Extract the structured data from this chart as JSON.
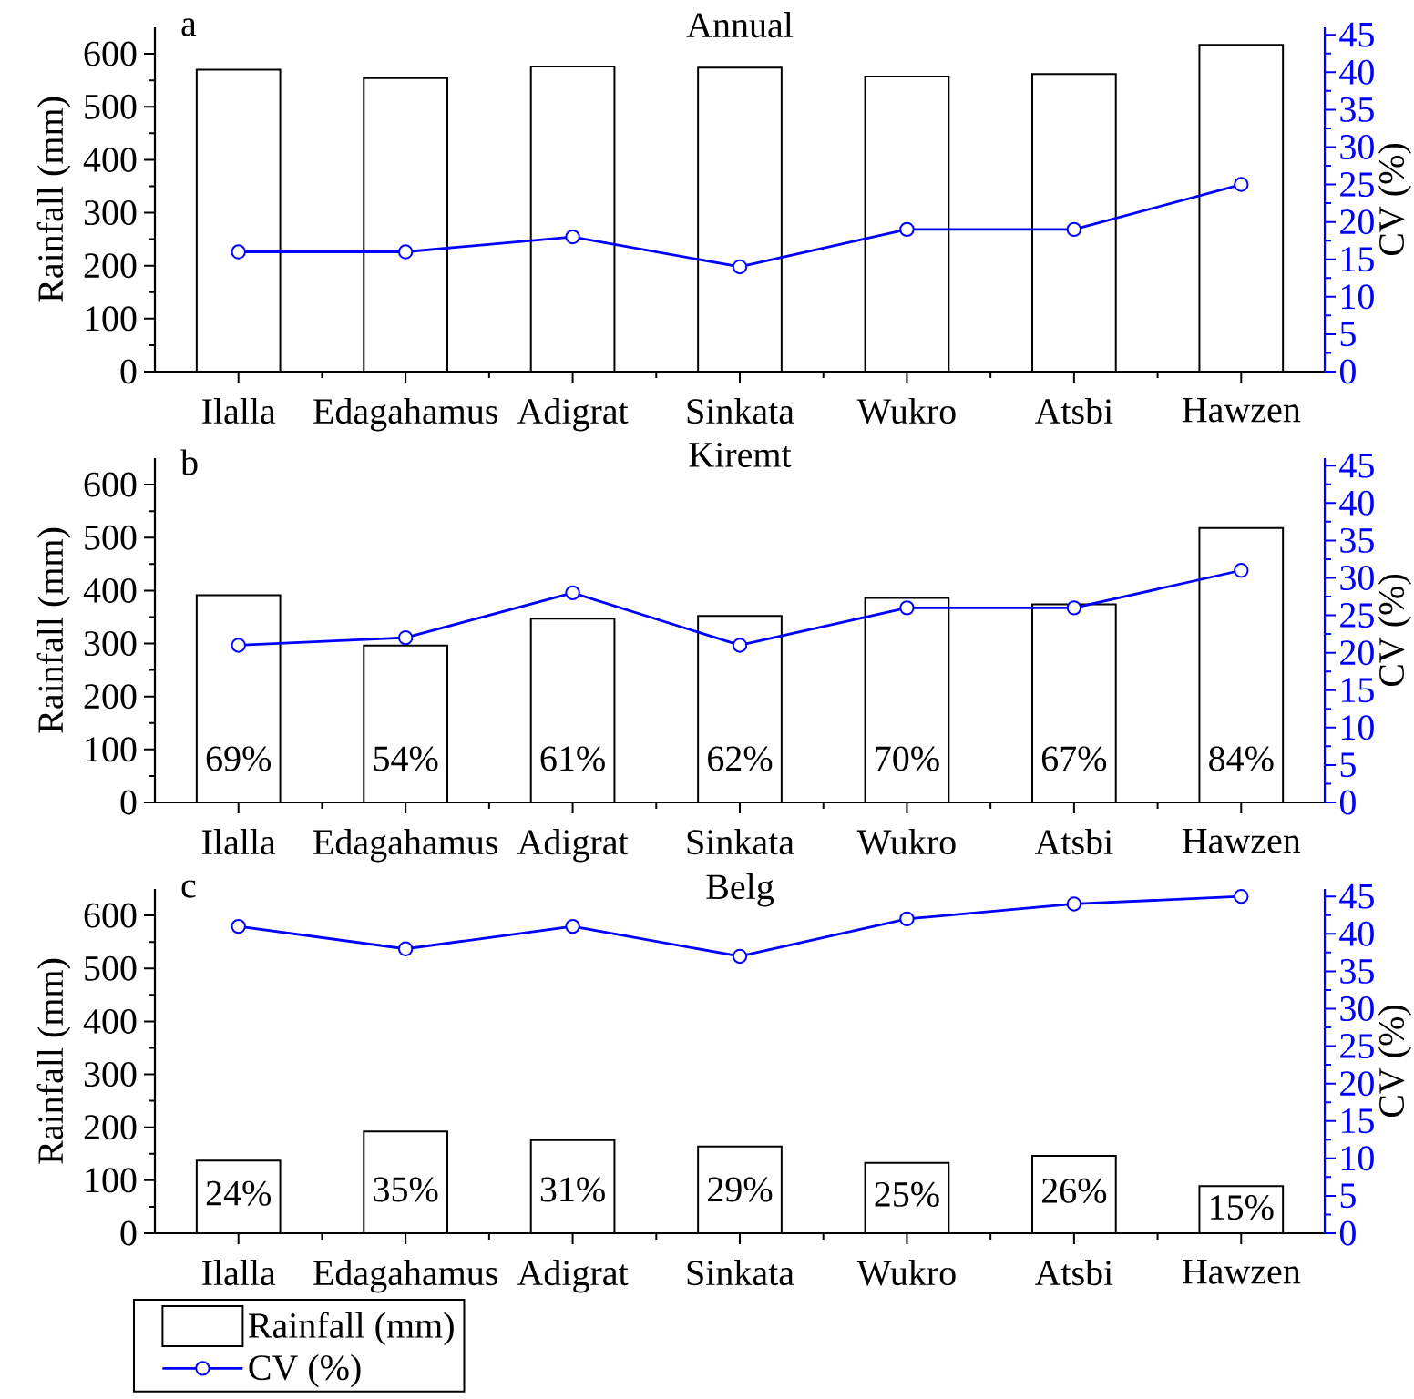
{
  "chart_data": [
    {
      "type": "bar",
      "title": "Annual",
      "annotations": [
        "a"
      ],
      "categories": [
        "Ilalla",
        "Edagahamus",
        "Adigrat",
        "Sinkata",
        "Wukro",
        "Atsbi",
        "Hawzen"
      ],
      "ylabel": "Rainfall (mm)",
      "y2label": "CV (%)",
      "ylim": [
        0,
        650
      ],
      "yticks": [
        0,
        {
          "value": 50,
          "label": null
        },
        100,
        {
          "value": 150,
          "label": null
        },
        200,
        {
          "value": 250,
          "label": null
        },
        300,
        {
          "value": 350,
          "label": null
        },
        400,
        {
          "value": 450,
          "label": null
        },
        500,
        {
          "value": 550,
          "label": null
        },
        600
      ],
      "y2lim": [
        0,
        46
      ],
      "y2ticks": [
        0,
        {
          "value": 2.5,
          "label": null
        },
        5,
        {
          "value": 7.5,
          "label": null
        },
        10,
        {
          "value": 12.5,
          "label": null
        },
        15,
        {
          "value": 17.5,
          "label": null
        },
        20,
        {
          "value": 22.5,
          "label": null
        },
        25,
        {
          "value": 27.5,
          "label": null
        },
        30,
        {
          "value": 32.5,
          "label": null
        },
        35,
        {
          "value": 37.5,
          "label": null
        },
        40,
        {
          "value": 42.5,
          "label": null
        },
        45
      ],
      "marker": "circle",
      "series": [
        {
          "color": "#ffffff",
          "values": [
            570,
            554,
            576,
            574,
            557,
            562,
            617
          ]
        },
        {
          "type": "line",
          "axis": "y2",
          "color": "#0000ff",
          "values": [
            16,
            16,
            18,
            14,
            19,
            19,
            25
          ]
        }
      ]
    },
    {
      "type": "bar",
      "title": "Kiremt",
      "annotations": [
        "b",
        "69%",
        "54%",
        "61%",
        "62%",
        "70%",
        "67%",
        "84%"
      ],
      "categories": [
        "Ilalla",
        "Edagahamus",
        "Adigrat",
        "Sinkata",
        "Wukro",
        "Atsbi",
        "Hawzen"
      ],
      "ylabel": "Rainfall (mm)",
      "y2label": "CV (%)",
      "ylim": [
        0,
        650
      ],
      "yticks": [
        0,
        {
          "value": 50,
          "label": null
        },
        100,
        {
          "value": 150,
          "label": null
        },
        200,
        {
          "value": 250,
          "label": null
        },
        300,
        {
          "value": 350,
          "label": null
        },
        400,
        {
          "value": 450,
          "label": null
        },
        500,
        {
          "value": 550,
          "label": null
        },
        600
      ],
      "y2lim": [
        0,
        46
      ],
      "y2ticks": [
        0,
        {
          "value": 2.5,
          "label": null
        },
        5,
        {
          "value": 7.5,
          "label": null
        },
        10,
        {
          "value": 12.5,
          "label": null
        },
        15,
        {
          "value": 17.5,
          "label": null
        },
        20,
        {
          "value": 22.5,
          "label": null
        },
        25,
        {
          "value": 27.5,
          "label": null
        },
        30,
        {
          "value": 32.5,
          "label": null
        },
        35,
        {
          "value": 37.5,
          "label": null
        },
        40,
        {
          "value": 42.5,
          "label": null
        },
        45
      ],
      "marker": "circle",
      "series": [
        {
          "color": "#ffffff",
          "values": [
            391,
            296,
            347,
            352,
            386,
            374,
            518
          ]
        },
        {
          "type": "line",
          "axis": "y2",
          "color": "#0000ff",
          "values": [
            21,
            22,
            28,
            21,
            26,
            26,
            31
          ]
        }
      ]
    },
    {
      "type": "bar",
      "title": "Belg",
      "annotations": [
        "c",
        "24%",
        "35%",
        "31%",
        "29%",
        "25%",
        "26%",
        "15%"
      ],
      "categories": [
        "Ilalla",
        "Edagahamus",
        "Adigrat",
        "Sinkata",
        "Wukro",
        "Atsbi",
        "Hawzen"
      ],
      "ylabel": "Rainfall (mm)",
      "y2label": "CV (%)",
      "ylim": [
        0,
        650
      ],
      "yticks": [
        0,
        {
          "value": 50,
          "label": null
        },
        100,
        {
          "value": 150,
          "label": null
        },
        200,
        {
          "value": 250,
          "label": null
        },
        300,
        {
          "value": 350,
          "label": null
        },
        400,
        {
          "value": 450,
          "label": null
        },
        500,
        {
          "value": 550,
          "label": null
        },
        600
      ],
      "y2lim": [
        0,
        46
      ],
      "y2ticks": [
        0,
        {
          "value": 2.5,
          "label": null
        },
        5,
        {
          "value": 7.5,
          "label": null
        },
        10,
        {
          "value": 12.5,
          "label": null
        },
        15,
        {
          "value": 17.5,
          "label": null
        },
        20,
        {
          "value": 22.5,
          "label": null
        },
        25,
        {
          "value": 27.5,
          "label": null
        },
        30,
        {
          "value": 32.5,
          "label": null
        },
        35,
        {
          "value": 37.5,
          "label": null
        },
        40,
        {
          "value": 42.5,
          "label": null
        },
        45
      ],
      "marker": "circle",
      "legend": "bottom left",
      "series": [
        {
          "name": "Rainfall (mm)",
          "color": "#ffffff",
          "values": [
            137,
            192,
            176,
            164,
            133,
            146,
            89
          ]
        },
        {
          "type": "line",
          "name": "CV (%)",
          "axis": "y2",
          "color": "#0000ff",
          "values": [
            41,
            38,
            41,
            37,
            42,
            44,
            45
          ]
        }
      ]
    }
  ]
}
